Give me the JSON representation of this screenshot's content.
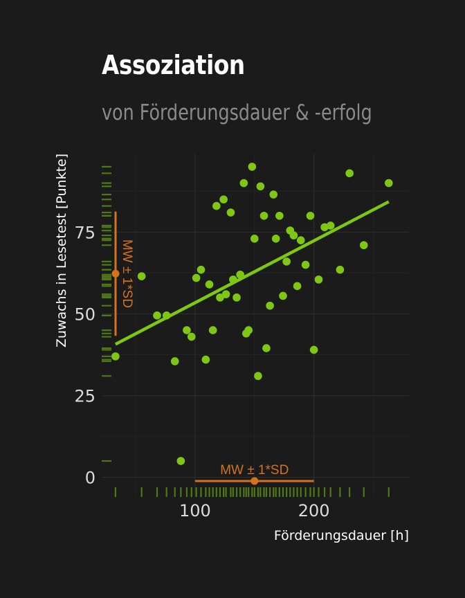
{
  "chart_data": {
    "type": "scatter",
    "title": "Assoziation",
    "subtitle": "von Förderungsdauer & -erfolg",
    "xlabel": "Förderungsdauer [h]",
    "ylabel": "Zuwachs in Lesetest [Punkte]",
    "xlim": [
      22,
      280
    ],
    "ylim": [
      -6,
      99
    ],
    "x_ticks": [
      100,
      200
    ],
    "y_ticks": [
      0,
      25,
      50,
      75
    ],
    "grid": true,
    "colors": {
      "points": "#7ec813",
      "annotation": "#d4731a",
      "rug": "#4e7a14",
      "grid": "#2c2c2c"
    },
    "points": [
      {
        "x": 33,
        "y": 37
      },
      {
        "x": 55,
        "y": 61.5
      },
      {
        "x": 68,
        "y": 49.5
      },
      {
        "x": 76,
        "y": 49.5
      },
      {
        "x": 83,
        "y": 35.5
      },
      {
        "x": 88,
        "y": 5
      },
      {
        "x": 93,
        "y": 45
      },
      {
        "x": 97,
        "y": 43
      },
      {
        "x": 101,
        "y": 61
      },
      {
        "x": 105,
        "y": 63.5
      },
      {
        "x": 109,
        "y": 36
      },
      {
        "x": 112,
        "y": 59
      },
      {
        "x": 115,
        "y": 45
      },
      {
        "x": 118,
        "y": 83
      },
      {
        "x": 121,
        "y": 55
      },
      {
        "x": 124,
        "y": 85
      },
      {
        "x": 126,
        "y": 56
      },
      {
        "x": 130,
        "y": 81
      },
      {
        "x": 132,
        "y": 60.5
      },
      {
        "x": 135,
        "y": 55
      },
      {
        "x": 138,
        "y": 62
      },
      {
        "x": 141,
        "y": 90
      },
      {
        "x": 143,
        "y": 44
      },
      {
        "x": 145,
        "y": 45
      },
      {
        "x": 148,
        "y": 95
      },
      {
        "x": 150,
        "y": 73
      },
      {
        "x": 153,
        "y": 31
      },
      {
        "x": 155,
        "y": 89
      },
      {
        "x": 158,
        "y": 80
      },
      {
        "x": 160,
        "y": 39.5
      },
      {
        "x": 163,
        "y": 52.5
      },
      {
        "x": 166,
        "y": 86.5
      },
      {
        "x": 168,
        "y": 73
      },
      {
        "x": 171,
        "y": 80
      },
      {
        "x": 174,
        "y": 55.5
      },
      {
        "x": 177,
        "y": 66
      },
      {
        "x": 180,
        "y": 75.5
      },
      {
        "x": 183,
        "y": 74
      },
      {
        "x": 186,
        "y": 58.5
      },
      {
        "x": 189,
        "y": 72.5
      },
      {
        "x": 193,
        "y": 65
      },
      {
        "x": 197,
        "y": 80
      },
      {
        "x": 200,
        "y": 39
      },
      {
        "x": 204,
        "y": 60.5
      },
      {
        "x": 209,
        "y": 76.5
      },
      {
        "x": 214,
        "y": 77
      },
      {
        "x": 222,
        "y": 63.5
      },
      {
        "x": 230,
        "y": 93
      },
      {
        "x": 242,
        "y": 71
      },
      {
        "x": 263,
        "y": 90
      }
    ],
    "trend_line": {
      "x": [
        33,
        263
      ],
      "y": [
        40.7,
        84.3
      ]
    },
    "x_summary": {
      "mean": 150,
      "sd": 50,
      "label": "MW ± 1*SD"
    },
    "y_summary": {
      "mean": 62.3,
      "sd": 19,
      "label": "MW ± 1*SD"
    }
  }
}
